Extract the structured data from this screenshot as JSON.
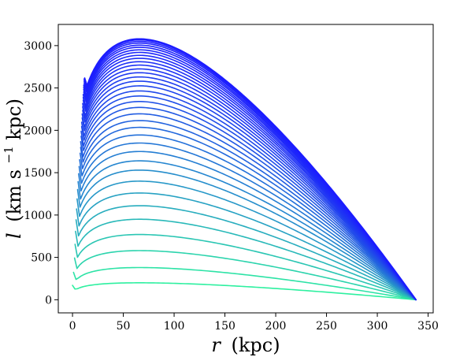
{
  "chart_data": {
    "type": "line",
    "title": "",
    "xlabel": "",
    "ylabel": "",
    "xlabel_parts": {
      "symbol": "r",
      "unit": "(kpc)"
    },
    "ylabel_parts": {
      "symbol": "l",
      "unit_open": "(km s",
      "exponent": "−1",
      "unit_close": " kpc)"
    },
    "xlim": [
      -14,
      355
    ],
    "ylim": [
      -155,
      3250
    ],
    "xticks": [
      0,
      50,
      100,
      150,
      200,
      250,
      300,
      350
    ],
    "yticks": [
      0,
      500,
      1000,
      1500,
      2000,
      2500,
      3000
    ],
    "grid": false,
    "legend": false,
    "color_high": "#1c1cff",
    "color_low": "#2ef0a0",
    "curve_model": {
      "r_end": 338,
      "peak_r": 66,
      "peak_lowest": 200,
      "peak_highest": 3080
    },
    "series": [
      {
        "r_start": 0,
        "peak": 200
      },
      {
        "r_start": 1,
        "peak": 380
      },
      {
        "r_start": 2,
        "peak": 580
      },
      {
        "r_start": 2.5,
        "peak": 770
      },
      {
        "r_start": 3,
        "peak": 950
      },
      {
        "r_start": 3.5,
        "peak": 1110
      },
      {
        "r_start": 4,
        "peak": 1260
      },
      {
        "r_start": 4.5,
        "peak": 1400
      },
      {
        "r_start": 5,
        "peak": 1530
      },
      {
        "r_start": 5.5,
        "peak": 1640
      },
      {
        "r_start": 6,
        "peak": 1750
      },
      {
        "r_start": 6.5,
        "peak": 1850
      },
      {
        "r_start": 7,
        "peak": 1945
      },
      {
        "r_start": 7.5,
        "peak": 2035
      },
      {
        "r_start": 8,
        "peak": 2115
      },
      {
        "r_start": 8,
        "peak": 2195
      },
      {
        "r_start": 8.5,
        "peak": 2270
      },
      {
        "r_start": 8.5,
        "peak": 2340
      },
      {
        "r_start": 9,
        "peak": 2405
      },
      {
        "r_start": 9,
        "peak": 2465
      },
      {
        "r_start": 9.5,
        "peak": 2525
      },
      {
        "r_start": 9.5,
        "peak": 2580
      },
      {
        "r_start": 10,
        "peak": 2630
      },
      {
        "r_start": 10,
        "peak": 2680
      },
      {
        "r_start": 10,
        "peak": 2725
      },
      {
        "r_start": 10.5,
        "peak": 2770
      },
      {
        "r_start": 10.5,
        "peak": 2810
      },
      {
        "r_start": 10.5,
        "peak": 2850
      },
      {
        "r_start": 11,
        "peak": 2885
      },
      {
        "r_start": 11,
        "peak": 2920
      },
      {
        "r_start": 11,
        "peak": 2950
      },
      {
        "r_start": 11,
        "peak": 2980
      },
      {
        "r_start": 11.5,
        "peak": 3005
      },
      {
        "r_start": 11.5,
        "peak": 3030
      },
      {
        "r_start": 11.5,
        "peak": 3050
      },
      {
        "r_start": 11.5,
        "peak": 3068
      },
      {
        "r_start": 12,
        "peak": 3080
      }
    ]
  }
}
